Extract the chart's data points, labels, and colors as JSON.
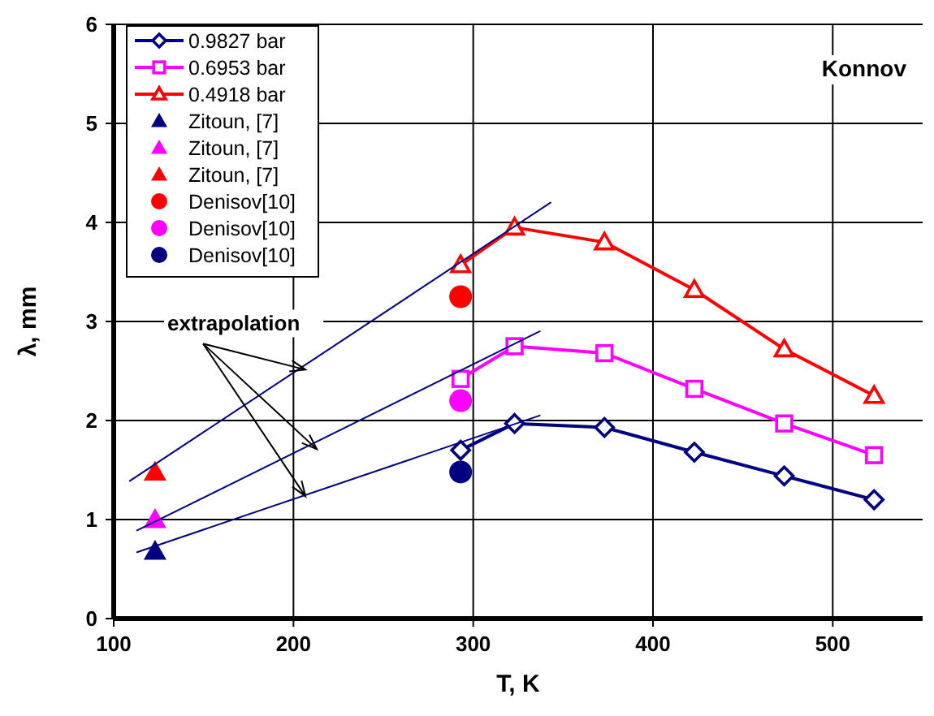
{
  "chart_data": {
    "type": "line",
    "xlabel": "T, K",
    "ylabel": "λ, mm",
    "xlim": [
      100,
      550
    ],
    "xticks": [
      100,
      200,
      300,
      400,
      500
    ],
    "ylim": [
      0,
      6
    ],
    "yticks": [
      0,
      1,
      2,
      3,
      4,
      5,
      6
    ],
    "grid": true,
    "legend": "top left",
    "annotations": [
      "Konnov",
      {
        "text": "extrapolation",
        "x": 213,
        "y": 1.71
      }
    ],
    "series": [
      {
        "name": "0.9827 bar",
        "color": "#000080",
        "marker": "diamond",
        "x": [
          293,
          323,
          373,
          423,
          473,
          523
        ],
        "values": [
          1.7,
          1.97,
          1.93,
          1.68,
          1.44,
          1.2
        ]
      },
      {
        "name": "0.6953 bar",
        "color": "#ff00ff",
        "marker": "square",
        "x": [
          293,
          323,
          373,
          423,
          473,
          523
        ],
        "values": [
          2.42,
          2.75,
          2.68,
          2.32,
          1.97,
          1.65
        ]
      },
      {
        "name": "0.4918 bar",
        "color": "#ff0000",
        "marker": "triangle",
        "x": [
          293,
          323,
          373,
          423,
          473,
          523
        ],
        "values": [
          3.57,
          3.95,
          3.8,
          3.32,
          2.72,
          2.25
        ]
      },
      {
        "name": "Zitoun, [7]",
        "type": "scatter",
        "color": "#000080",
        "marker": "triangle",
        "x": [
          123
        ],
        "values": [
          0.68
        ]
      },
      {
        "name": "Zitoun, [7]",
        "type": "scatter",
        "color": "#ff00ff",
        "marker": "triangle",
        "x": [
          123
        ],
        "values": [
          1.0
        ]
      },
      {
        "name": "Zitoun, [7]",
        "type": "scatter",
        "color": "#ff0000",
        "marker": "triangle",
        "x": [
          123
        ],
        "values": [
          1.48
        ]
      },
      {
        "name": "Denisov[10]",
        "type": "scatter",
        "color": "#ff0000",
        "marker": "circle",
        "x": [
          293
        ],
        "values": [
          3.25
        ]
      },
      {
        "name": "Denisov[10]",
        "type": "scatter",
        "color": "#ff00ff",
        "marker": "circle",
        "x": [
          293
        ],
        "values": [
          2.2
        ]
      },
      {
        "name": "Denisov[10]",
        "type": "scatter",
        "color": "#000080",
        "marker": "circle",
        "x": [
          293
        ],
        "values": [
          1.48
        ]
      },
      {
        "type": "line",
        "color": "#000080",
        "marker": "none",
        "x": [
          109,
          343
        ],
        "values": [
          1.39,
          4.2
        ]
      },
      {
        "type": "line",
        "color": "#000080",
        "marker": "none",
        "x": [
          113,
          337
        ],
        "values": [
          0.89,
          2.9
        ]
      },
      {
        "type": "line",
        "color": "#000080",
        "marker": "none",
        "x": [
          113,
          337
        ],
        "values": [
          0.67,
          2.05
        ]
      }
    ]
  }
}
